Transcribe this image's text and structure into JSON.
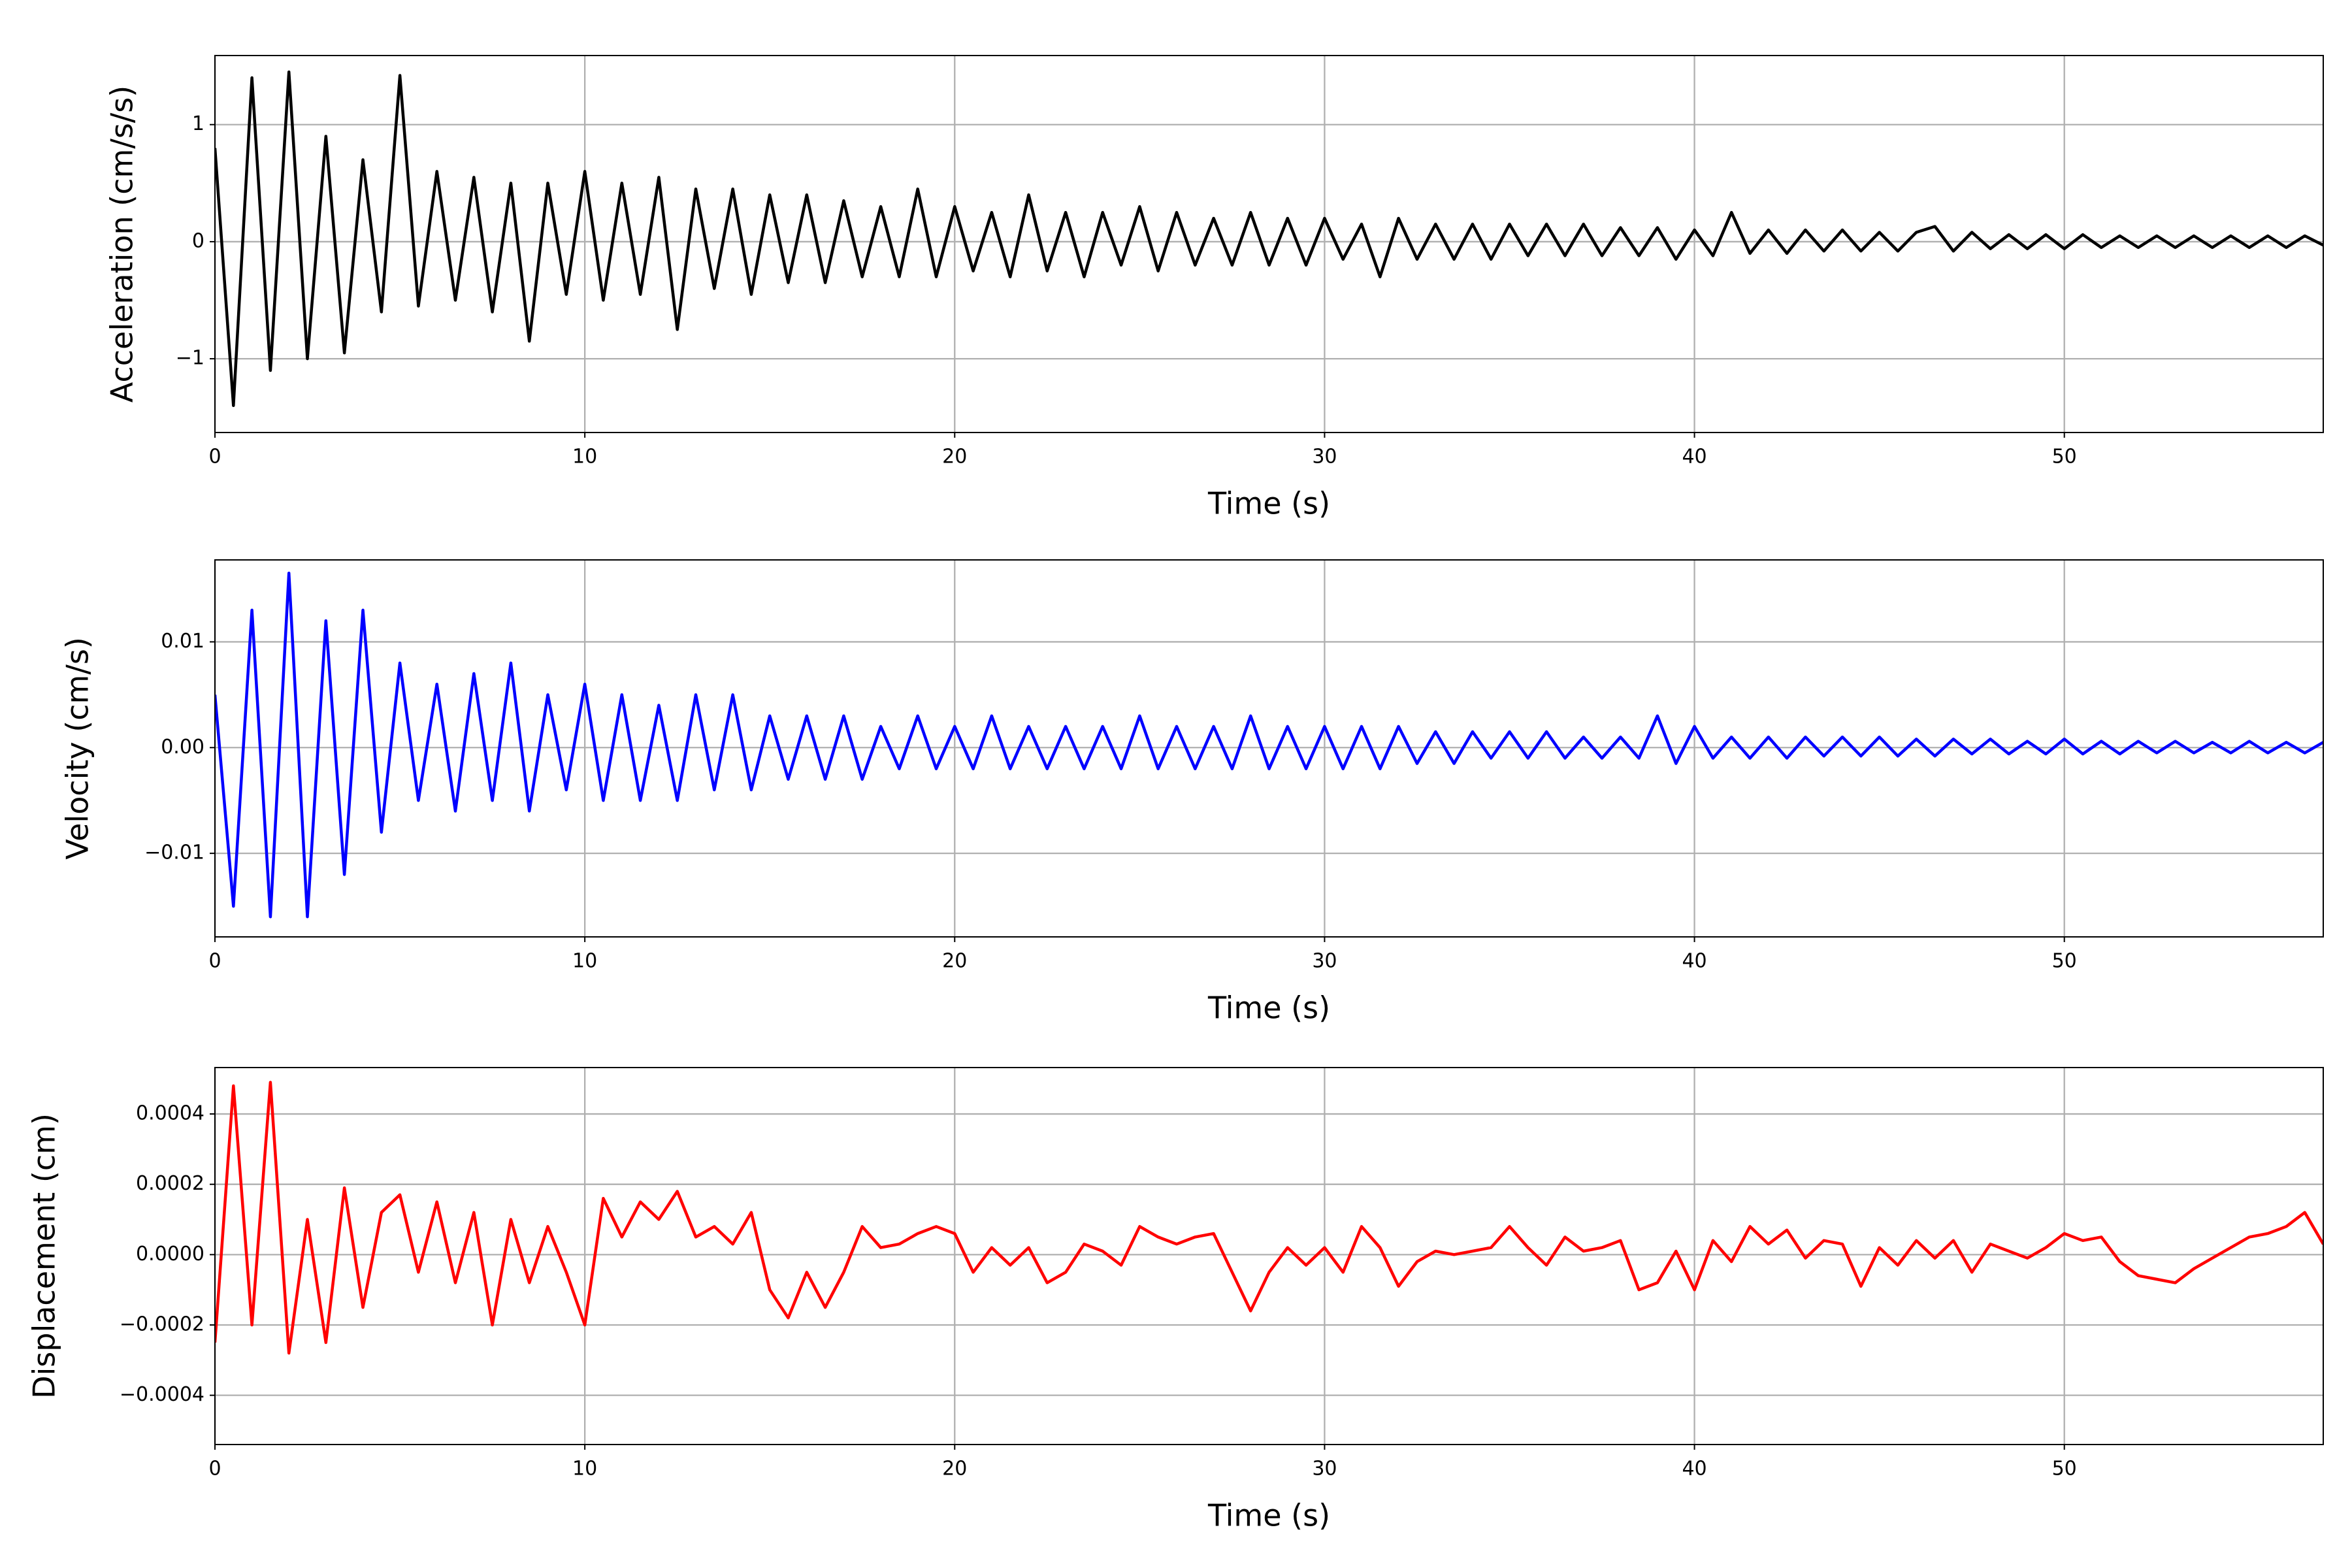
{
  "chart_data": [
    {
      "type": "line",
      "xlabel": "Time (s)",
      "ylabel": "Acceleration (cm/s/s)",
      "color": "#000000",
      "grid": true,
      "x": [
        0,
        0.5,
        1,
        1.5,
        2,
        2.5,
        3,
        3.5,
        4,
        4.5,
        5,
        5.5,
        6,
        6.5,
        7,
        7.5,
        8,
        8.5,
        9,
        9.5,
        10,
        10.5,
        11,
        11.5,
        12,
        12.5,
        13,
        13.5,
        14,
        14.5,
        15,
        15.5,
        16,
        16.5,
        17,
        17.5,
        18,
        18.5,
        19,
        19.5,
        20,
        20.5,
        21,
        21.5,
        22,
        22.5,
        23,
        23.5,
        24,
        24.5,
        25,
        25.5,
        26,
        26.5,
        27,
        27.5,
        28,
        28.5,
        29,
        29.5,
        30,
        30.5,
        31,
        31.5,
        32,
        32.5,
        33,
        33.5,
        34,
        34.5,
        35,
        35.5,
        36,
        36.5,
        37,
        37.5,
        38,
        38.5,
        39,
        39.5,
        40,
        40.5,
        41,
        41.5,
        42,
        42.5,
        43,
        43.5,
        44,
        44.5,
        45,
        45.5,
        46,
        46.5,
        47,
        47.5,
        48,
        48.5,
        49,
        49.5,
        50,
        50.5,
        51,
        51.5,
        52,
        52.5,
        53,
        53.5,
        54,
        54.5,
        55,
        55.5,
        56,
        56.5,
        57
      ],
      "values": [
        0.8,
        -1.4,
        1.4,
        -1.1,
        1.45,
        -1.0,
        0.9,
        -0.95,
        0.7,
        -0.6,
        1.42,
        -0.55,
        0.6,
        -0.5,
        0.55,
        -0.6,
        0.5,
        -0.85,
        0.5,
        -0.45,
        0.6,
        -0.5,
        0.5,
        -0.45,
        0.55,
        -0.75,
        0.45,
        -0.4,
        0.45,
        -0.45,
        0.4,
        -0.35,
        0.4,
        -0.35,
        0.35,
        -0.3,
        0.3,
        -0.3,
        0.45,
        -0.3,
        0.3,
        -0.25,
        0.25,
        -0.3,
        0.4,
        -0.25,
        0.25,
        -0.3,
        0.25,
        -0.2,
        0.3,
        -0.25,
        0.25,
        -0.2,
        0.2,
        -0.2,
        0.25,
        -0.2,
        0.2,
        -0.2,
        0.2,
        -0.15,
        0.15,
        -0.3,
        0.2,
        -0.15,
        0.15,
        -0.15,
        0.15,
        -0.15,
        0.15,
        -0.12,
        0.15,
        -0.12,
        0.15,
        -0.12,
        0.12,
        -0.12,
        0.12,
        -0.15,
        0.1,
        -0.12,
        0.25,
        -0.1,
        0.1,
        -0.1,
        0.1,
        -0.08,
        0.1,
        -0.08,
        0.08,
        -0.08,
        0.08,
        0.13,
        -0.08,
        0.08,
        -0.06,
        0.06,
        -0.06,
        0.06,
        -0.06,
        0.06,
        -0.05,
        0.05,
        -0.05,
        0.05,
        -0.05,
        0.05,
        -0.05,
        0.05,
        -0.05,
        0.05,
        -0.05,
        0.05,
        -0.03
      ],
      "xlim": [
        0,
        57
      ],
      "xticks": [
        0,
        10,
        20,
        30,
        40,
        50
      ],
      "ylim": [
        -1.63,
        1.59
      ],
      "yticks": [
        {
          "value": -1,
          "label": "−1"
        },
        0,
        1
      ]
    },
    {
      "type": "line",
      "xlabel": "Time (s)",
      "ylabel": "Velocity (cm/s)",
      "color": "#0000ff",
      "grid": true,
      "x": [
        0,
        0.5,
        1,
        1.5,
        2,
        2.5,
        3,
        3.5,
        4,
        4.5,
        5,
        5.5,
        6,
        6.5,
        7,
        7.5,
        8,
        8.5,
        9,
        9.5,
        10,
        10.5,
        11,
        11.5,
        12,
        12.5,
        13,
        13.5,
        14,
        14.5,
        15,
        15.5,
        16,
        16.5,
        17,
        17.5,
        18,
        18.5,
        19,
        19.5,
        20,
        20.5,
        21,
        21.5,
        22,
        22.5,
        23,
        23.5,
        24,
        24.5,
        25,
        25.5,
        26,
        26.5,
        27,
        27.5,
        28,
        28.5,
        29,
        29.5,
        30,
        30.5,
        31,
        31.5,
        32,
        32.5,
        33,
        33.5,
        34,
        34.5,
        35,
        35.5,
        36,
        36.5,
        37,
        37.5,
        38,
        38.5,
        39,
        39.5,
        40,
        40.5,
        41,
        41.5,
        42,
        42.5,
        43,
        43.5,
        44,
        44.5,
        45,
        45.5,
        46,
        46.5,
        47,
        47.5,
        48,
        48.5,
        49,
        49.5,
        50,
        50.5,
        51,
        51.5,
        52,
        52.5,
        53,
        53.5,
        54,
        54.5,
        55,
        55.5,
        56,
        56.5,
        57
      ],
      "values": [
        0.005,
        -0.015,
        0.013,
        -0.016,
        0.0165,
        -0.016,
        0.012,
        -0.012,
        0.013,
        -0.008,
        0.008,
        -0.005,
        0.006,
        -0.006,
        0.007,
        -0.005,
        0.008,
        -0.006,
        0.005,
        -0.004,
        0.006,
        -0.005,
        0.005,
        -0.005,
        0.004,
        -0.005,
        0.005,
        -0.004,
        0.005,
        -0.004,
        0.003,
        -0.003,
        0.003,
        -0.003,
        0.003,
        -0.003,
        0.002,
        -0.002,
        0.003,
        -0.002,
        0.002,
        -0.002,
        0.003,
        -0.002,
        0.002,
        -0.002,
        0.002,
        -0.002,
        0.002,
        -0.002,
        0.003,
        -0.002,
        0.002,
        -0.002,
        0.002,
        -0.002,
        0.003,
        -0.002,
        0.002,
        -0.002,
        0.002,
        -0.002,
        0.002,
        -0.002,
        0.002,
        -0.0015,
        0.0015,
        -0.0015,
        0.0015,
        -0.001,
        0.0015,
        -0.001,
        0.0015,
        -0.001,
        0.001,
        -0.001,
        0.001,
        -0.001,
        0.003,
        -0.0015,
        0.002,
        -0.001,
        0.001,
        -0.001,
        0.001,
        -0.001,
        0.001,
        -0.0008,
        0.001,
        -0.0008,
        0.001,
        -0.0008,
        0.0008,
        -0.0008,
        0.0008,
        -0.0006,
        0.0008,
        -0.0006,
        0.0006,
        -0.0006,
        0.0008,
        -0.0006,
        0.0006,
        -0.0006,
        0.0006,
        -0.0005,
        0.0006,
        -0.0005,
        0.0005,
        -0.0005,
        0.0006,
        -0.0005,
        0.0005,
        -0.0005,
        0.0005
      ],
      "xlim": [
        0,
        57
      ],
      "xticks": [
        0,
        10,
        20,
        30,
        40,
        50
      ],
      "ylim": [
        -0.0179,
        0.01775
      ],
      "yticks": [
        {
          "value": -0.01,
          "label": "−0.01"
        },
        {
          "value": 0,
          "label": "0.00"
        },
        0.01
      ]
    },
    {
      "type": "line",
      "xlabel": "Time (s)",
      "ylabel": "Displacement (cm)",
      "color": "#ff0000",
      "grid": true,
      "x": [
        0,
        0.5,
        1,
        1.5,
        2,
        2.5,
        3,
        3.5,
        4,
        4.5,
        5,
        5.5,
        6,
        6.5,
        7,
        7.5,
        8,
        8.5,
        9,
        9.5,
        10,
        10.5,
        11,
        11.5,
        12,
        12.5,
        13,
        13.5,
        14,
        14.5,
        15,
        15.5,
        16,
        16.5,
        17,
        17.5,
        18,
        18.5,
        19,
        19.5,
        20,
        20.5,
        21,
        21.5,
        22,
        22.5,
        23,
        23.5,
        24,
        24.5,
        25,
        25.5,
        26,
        26.5,
        27,
        27.5,
        28,
        28.5,
        29,
        29.5,
        30,
        30.5,
        31,
        31.5,
        32,
        32.5,
        33,
        33.5,
        34,
        34.5,
        35,
        35.5,
        36,
        36.5,
        37,
        37.5,
        38,
        38.5,
        39,
        39.5,
        40,
        40.5,
        41,
        41.5,
        42,
        42.5,
        43,
        43.5,
        44,
        44.5,
        45,
        45.5,
        46,
        46.5,
        47,
        47.5,
        48,
        48.5,
        49,
        49.5,
        50,
        50.5,
        51,
        51.5,
        52,
        52.5,
        53,
        53.5,
        54,
        54.5,
        55,
        55.5,
        56,
        56.5,
        57
      ],
      "values": [
        -0.00025,
        0.00048,
        -0.0002,
        0.00049,
        -0.00028,
        0.0001,
        -0.00025,
        0.00019,
        -0.00015,
        0.00012,
        0.00017,
        -5e-05,
        0.00015,
        -8e-05,
        0.00012,
        -0.0002,
        0.0001,
        -8e-05,
        8e-05,
        -5e-05,
        -0.0002,
        0.00016,
        5e-05,
        0.00015,
        0.0001,
        0.00018,
        5e-05,
        8e-05,
        3e-05,
        0.00012,
        -0.0001,
        -0.00018,
        -5e-05,
        -0.00015,
        -5e-05,
        8e-05,
        2e-05,
        3e-05,
        6e-05,
        8e-05,
        6e-05,
        -5e-05,
        2e-05,
        -3e-05,
        2e-05,
        -8e-05,
        -5e-05,
        3e-05,
        1e-05,
        -3e-05,
        8e-05,
        5e-05,
        3e-05,
        5e-05,
        6e-05,
        -5e-05,
        -0.00016,
        -5e-05,
        2e-05,
        -3e-05,
        2e-05,
        -5e-05,
        8e-05,
        2e-05,
        -9e-05,
        -2e-05,
        1e-05,
        0.0,
        1e-05,
        2e-05,
        8e-05,
        2e-05,
        -3e-05,
        5e-05,
        1e-05,
        2e-05,
        4e-05,
        -0.0001,
        -8e-05,
        1e-05,
        -0.0001,
        4e-05,
        -2e-05,
        8e-05,
        3e-05,
        7e-05,
        -1e-05,
        4e-05,
        3e-05,
        -9e-05,
        2e-05,
        -3e-05,
        4e-05,
        -1e-05,
        4e-05,
        -5e-05,
        3e-05,
        1e-05,
        -1e-05,
        2e-05,
        6e-05,
        4e-05,
        5e-05,
        -2e-05,
        -6e-05,
        -7e-05,
        -8e-05,
        -4e-05,
        -1e-05,
        2e-05,
        5e-05,
        6e-05,
        8e-05,
        0.00012,
        3e-05
      ],
      "xlim": [
        0,
        57
      ],
      "xticks": [
        0,
        10,
        20,
        30,
        40,
        50
      ],
      "ylim": [
        -0.00054,
        0.000532
      ],
      "yticks": [
        {
          "value": -0.0004,
          "label": "−0.0004"
        },
        {
          "value": -0.0002,
          "label": "−0.0002"
        },
        {
          "value": 0,
          "label": "0.0000"
        },
        {
          "value": 0.0002,
          "label": "0.0002"
        },
        {
          "value": 0.0004,
          "label": "0.0004"
        }
      ]
    }
  ]
}
